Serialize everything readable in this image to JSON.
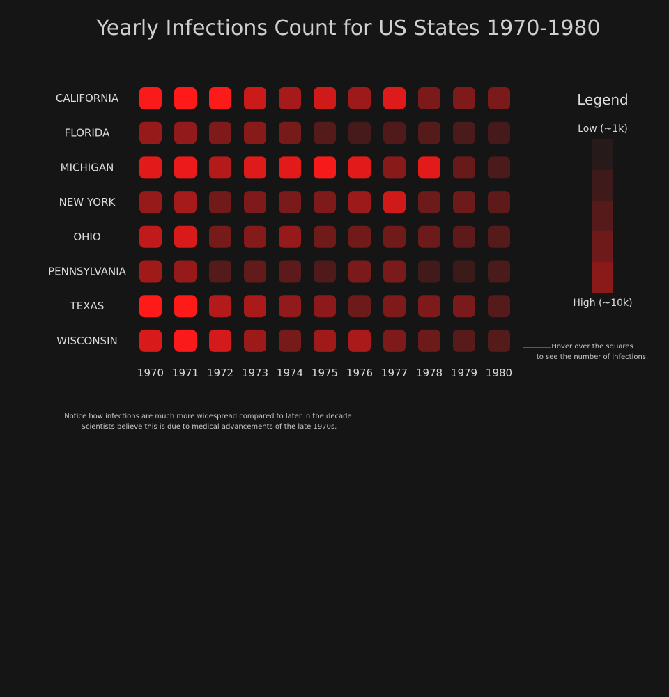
{
  "chart_data": {
    "type": "heatmap",
    "title": "Yearly Infections Count for US States 1970-1980",
    "rows": [
      "CALIFORNIA",
      "FLORIDA",
      "MICHIGAN",
      "NEW YORK",
      "OHIO",
      "PENNSYLVANIA",
      "TEXAS",
      "WISCONSIN"
    ],
    "columns": [
      "1970",
      "1971",
      "1972",
      "1973",
      "1974",
      "1975",
      "1976",
      "1977",
      "1978",
      "1979",
      "1980"
    ],
    "values": [
      [
        9.8,
        10.0,
        9.9,
        7.8,
        6.2,
        8.0,
        5.8,
        8.6,
        4.4,
        4.6,
        4.4
      ],
      [
        5.6,
        5.4,
        4.6,
        5.0,
        4.2,
        2.8,
        2.2,
        2.6,
        2.8,
        2.4,
        2.2
      ],
      [
        8.8,
        9.2,
        6.8,
        8.6,
        8.8,
        9.6,
        8.8,
        5.0,
        8.8,
        3.6,
        2.4
      ],
      [
        5.6,
        6.2,
        4.0,
        4.6,
        4.4,
        4.6,
        5.8,
        8.0,
        3.8,
        3.8,
        3.2
      ],
      [
        7.4,
        8.4,
        4.2,
        4.8,
        5.6,
        4.0,
        4.0,
        4.0,
        3.8,
        3.2,
        2.8
      ],
      [
        6.0,
        5.6,
        2.8,
        3.4,
        3.2,
        2.6,
        4.4,
        4.4,
        2.0,
        1.8,
        2.4
      ],
      [
        10.0,
        10.0,
        6.8,
        6.4,
        5.4,
        5.2,
        3.8,
        4.6,
        4.6,
        4.4,
        2.8
      ],
      [
        8.4,
        9.8,
        8.2,
        5.8,
        4.2,
        6.0,
        6.4,
        4.6,
        3.8,
        3.0,
        2.8
      ]
    ],
    "color_scale": {
      "low": "#2a1a1a",
      "high": "#ff1a1a"
    },
    "legend": {
      "title": "Legend",
      "low_label": "Low (~1k)",
      "high_label": "High (~10k)",
      "steps": [
        "#271a1a",
        "#3f1a1a",
        "#561a1a",
        "#6e1a1a",
        "#8a1a1a"
      ]
    },
    "hover_note": [
      "Hover over the squares",
      "to see the number of infections."
    ],
    "annotation": {
      "column": "1971",
      "lines": [
        "Notice how infections are much more widespread compared to later in the decade.",
        "Scientists believe this is due to medical advancements of the late 1970s."
      ]
    }
  }
}
